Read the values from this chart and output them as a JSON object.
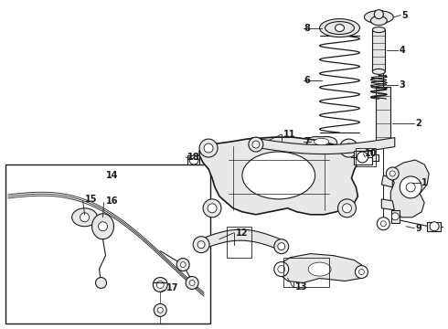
{
  "bg_color": "#ffffff",
  "line_color": "#1a1a1a",
  "fig_width": 4.9,
  "fig_height": 3.6,
  "dpi": 100,
  "label_fontsize": 7.0,
  "lw_thin": 0.5,
  "lw_med": 0.8,
  "lw_thick": 1.2,
  "part_fill": "#e8e8e8",
  "white": "#ffffff"
}
